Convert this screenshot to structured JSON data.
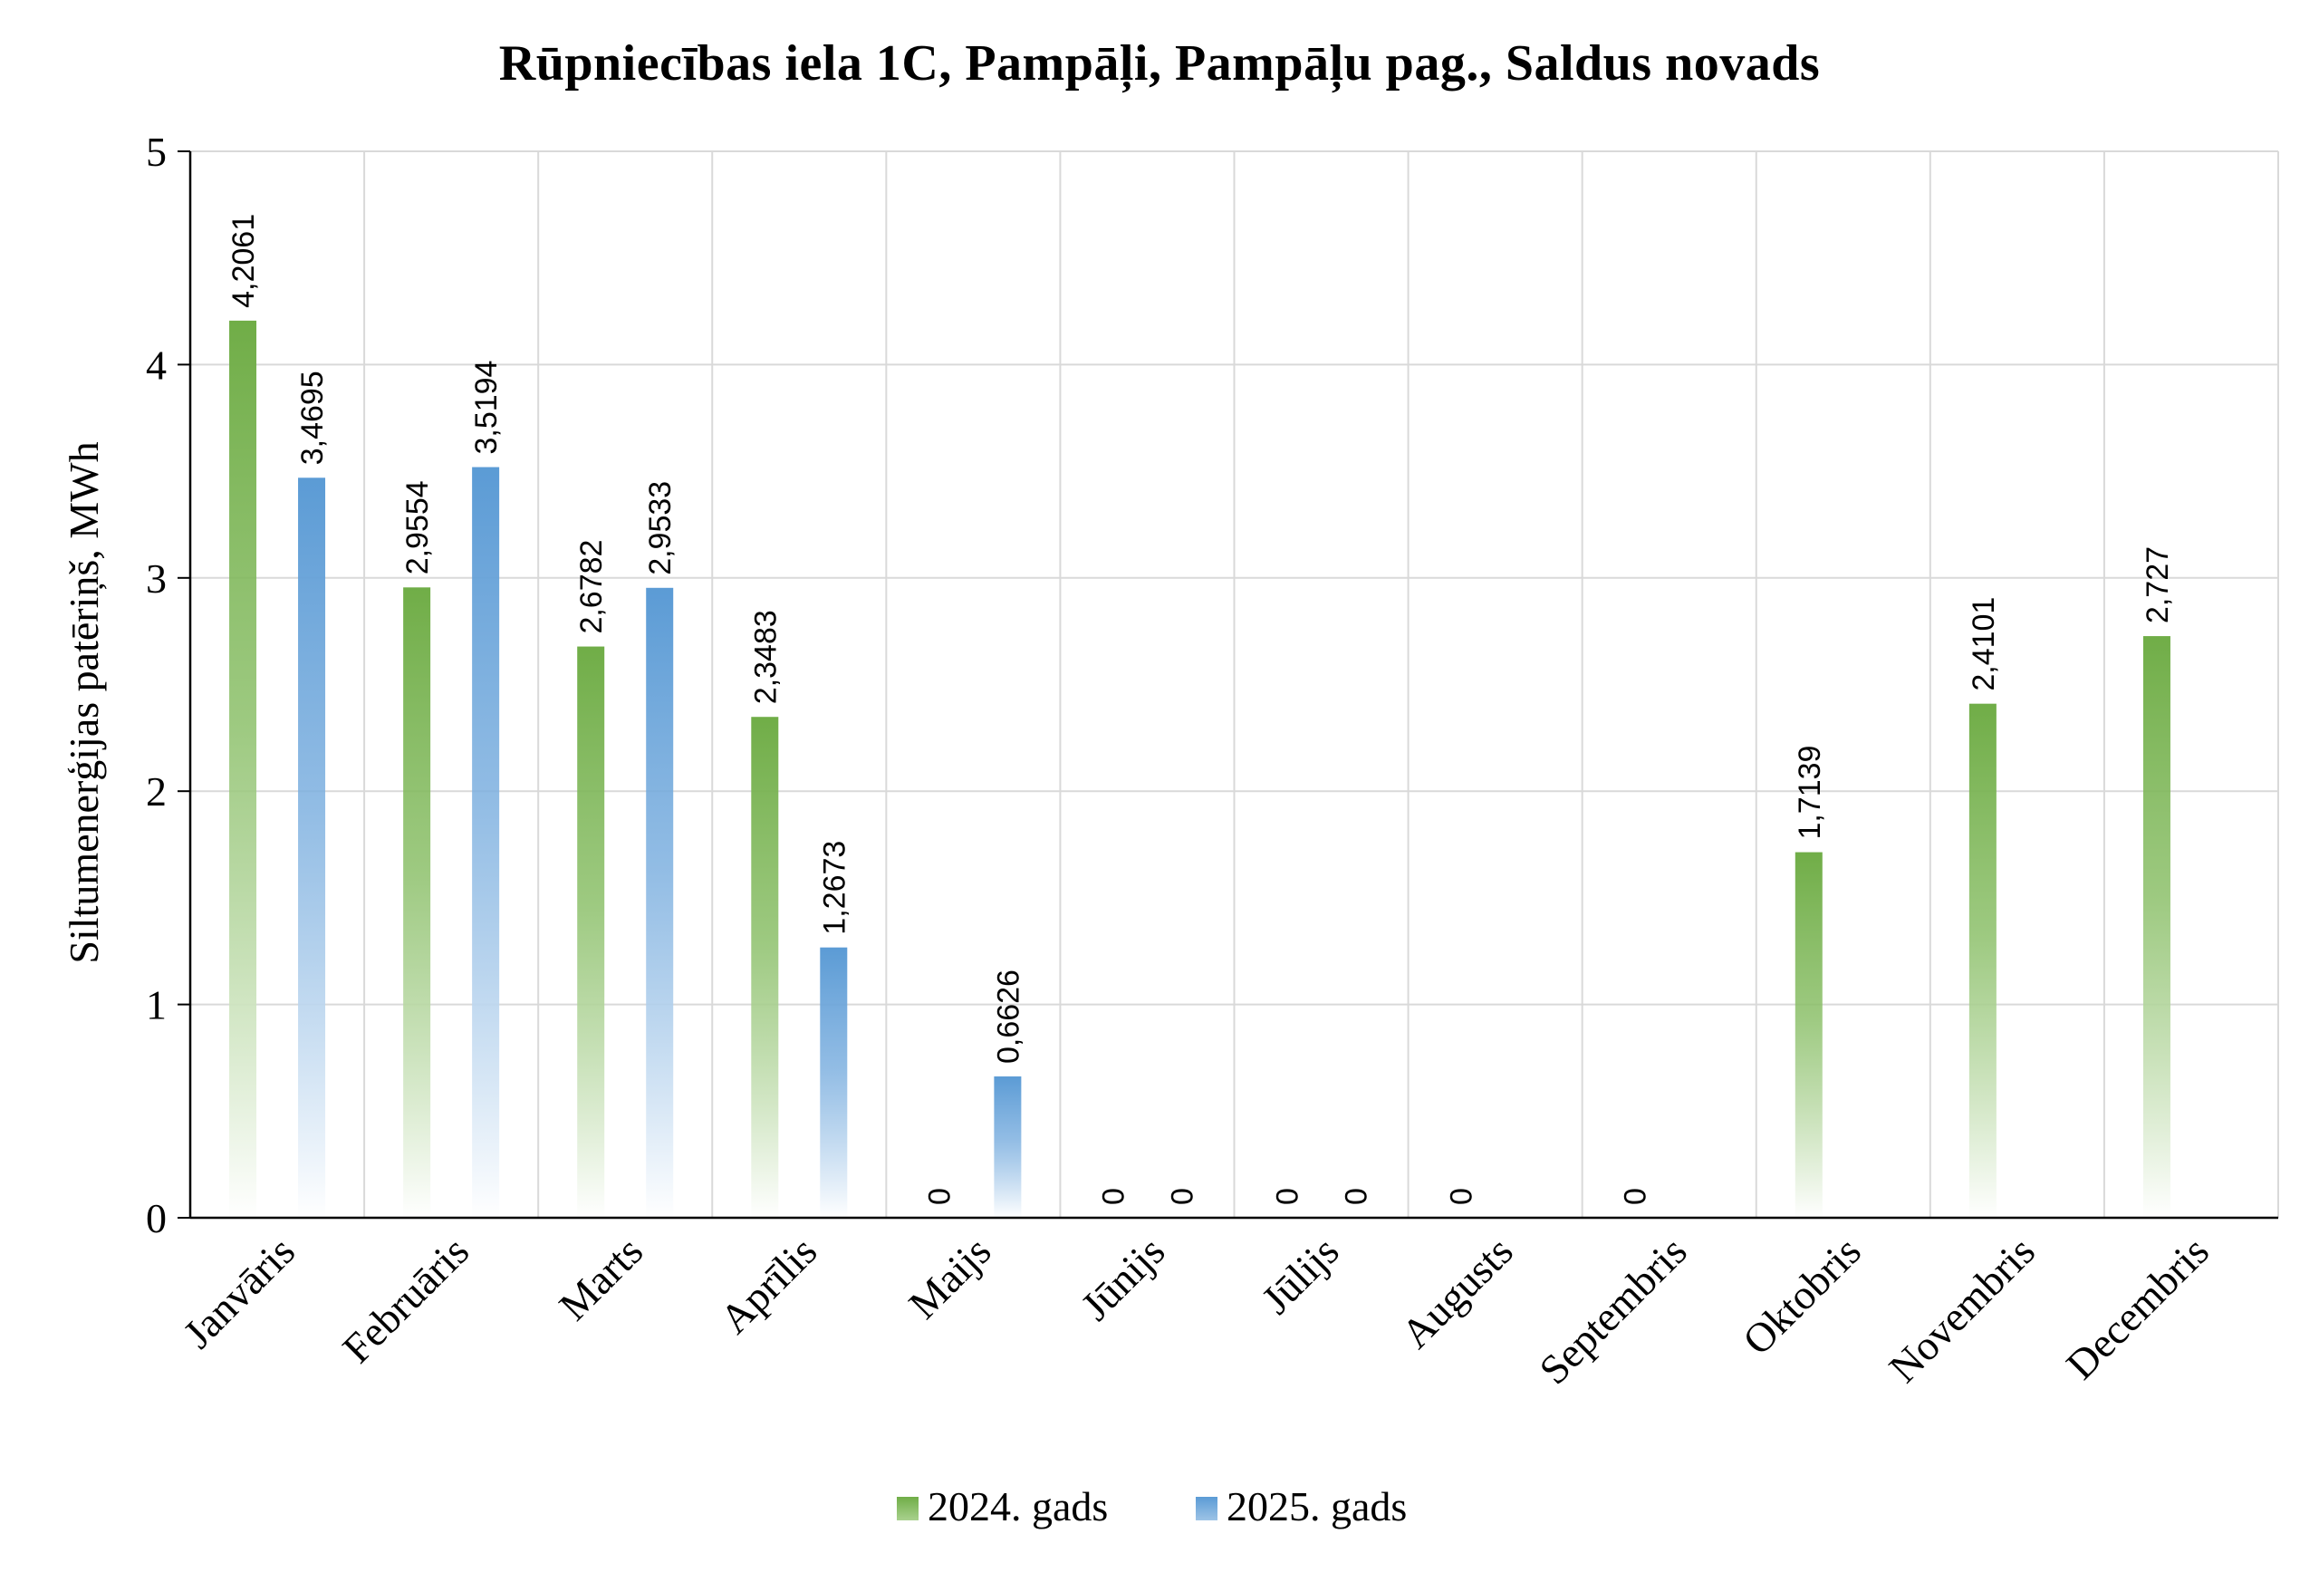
{
  "chart_data": {
    "type": "bar",
    "title": "Rūpniecības iela 1C, Pampāļi, Pampāļu pag., Saldus novads",
    "ylabel": "Siltumenerģijas patēriņš, MWh",
    "xlabel": "",
    "ylim": [
      0,
      5
    ],
    "yticks": [
      "0",
      "1",
      "2",
      "3",
      "4",
      "5"
    ],
    "grid": true,
    "legend_position": "bottom",
    "categories": [
      "Janvāris",
      "Februāris",
      "Marts",
      "Aprīlis",
      "Maijs",
      "Jūnijs",
      "Jūlijs",
      "Augusts",
      "Septembris",
      "Oktobris",
      "Novembris",
      "Decembris"
    ],
    "series": [
      {
        "name": "2024. gads",
        "color": "#70ad47",
        "values": [
          4.2061,
          2.9554,
          2.6782,
          2.3483,
          0,
          0,
          0,
          0,
          0,
          1.7139,
          2.4101,
          2.727
        ],
        "labels": [
          "4,2061",
          "2,9554",
          "2,6782",
          "2,3483",
          "0",
          "0",
          "0",
          "0",
          "0",
          "1,7139",
          "2,4101",
          "2,727"
        ]
      },
      {
        "name": "2025. gads",
        "color": "#5b9bd5",
        "values": [
          3.4695,
          3.5194,
          2.9533,
          1.2673,
          0.6626,
          0,
          0,
          null,
          null,
          null,
          null,
          null
        ],
        "labels": [
          "3,4695",
          "3,5194",
          "2,9533",
          "1,2673",
          "0,6626",
          "0",
          "0",
          null,
          null,
          null,
          null,
          null
        ]
      }
    ]
  }
}
